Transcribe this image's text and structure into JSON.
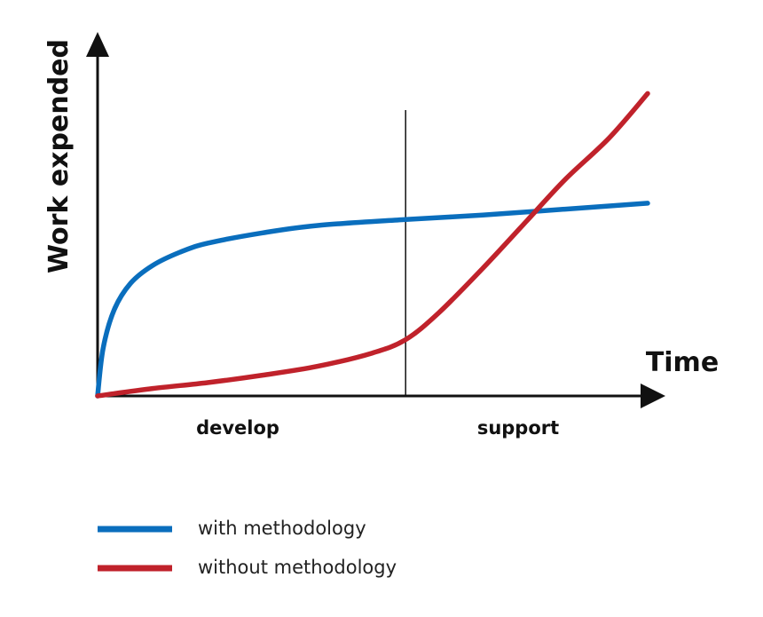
{
  "chart_data": {
    "type": "line",
    "title": "",
    "xlabel": "Time",
    "ylabel": "Work expended",
    "xlim": [
      0,
      10
    ],
    "ylim": [
      0,
      10
    ],
    "grid": false,
    "legend_position": "bottom-left",
    "phases": [
      {
        "label": "develop"
      },
      {
        "label": "support"
      }
    ],
    "phase_boundary_x": 5.6,
    "series": [
      {
        "name": "with methodology",
        "color": "#0a6ebd",
        "x": [
          0,
          0.1,
          0.3,
          0.6,
          1.0,
          1.5,
          2.0,
          3.0,
          4.0,
          5.6,
          7.0,
          8.5,
          10.0
        ],
        "y": [
          0,
          1.6,
          2.9,
          3.8,
          4.4,
          4.85,
          5.15,
          5.5,
          5.75,
          5.95,
          6.1,
          6.3,
          6.5
        ]
      },
      {
        "name": "without methodology",
        "color": "#c0222b",
        "x": [
          0,
          1.0,
          2.0,
          3.0,
          4.0,
          5.0,
          5.6,
          6.2,
          7.0,
          7.8,
          8.5,
          9.3,
          10.0
        ],
        "y": [
          0,
          0.25,
          0.45,
          0.7,
          1.0,
          1.45,
          1.9,
          2.8,
          4.3,
          5.9,
          7.3,
          8.7,
          10.2
        ]
      }
    ]
  }
}
